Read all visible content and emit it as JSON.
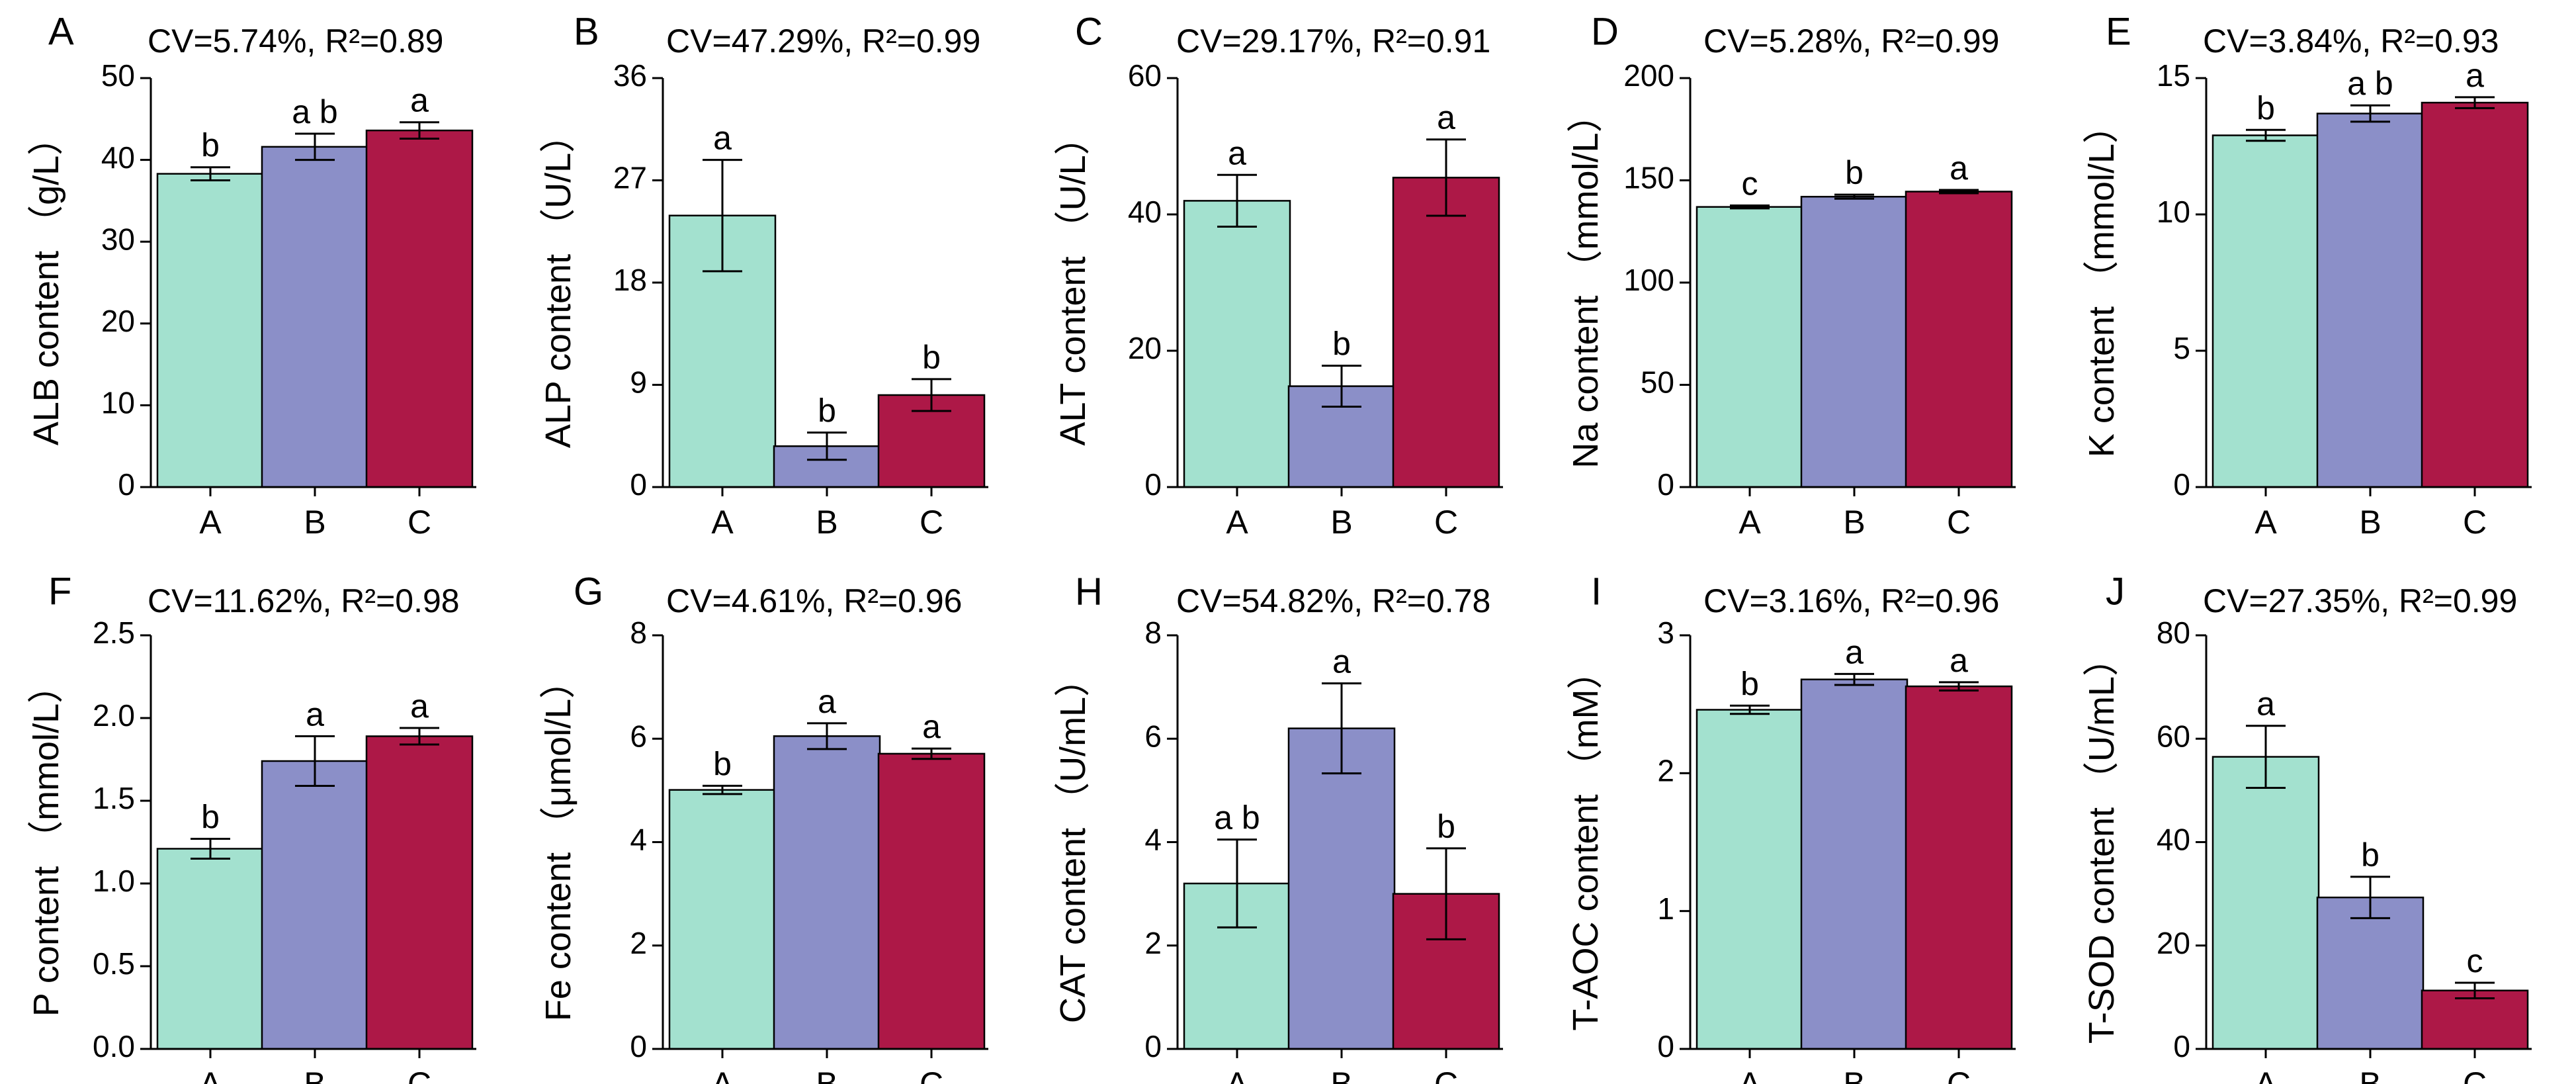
{
  "figure": {
    "categories": [
      "A",
      "B",
      "C"
    ],
    "bar_colors": [
      "#a3e1cf",
      "#8b8fc8",
      "#ad1847"
    ]
  },
  "chart_data": [
    {
      "panel": "A",
      "type": "bar",
      "stats": "CV=5.74%, R²=0.89",
      "ylabel": "ALB content （g/L）",
      "categories": [
        "A",
        "B",
        "C"
      ],
      "values": [
        38.3,
        41.6,
        43.6
      ],
      "errors": [
        0.8,
        1.6,
        1.0
      ],
      "letters": [
        "b",
        "a b",
        "a"
      ],
      "ylim": [
        0,
        50
      ],
      "yticks": [
        0,
        10,
        20,
        30,
        40,
        50
      ]
    },
    {
      "panel": "B",
      "type": "bar",
      "stats": "CV=47.29%, R²=0.99",
      "ylabel": "ALP content （U/L）",
      "categories": [
        "A",
        "B",
        "C"
      ],
      "values": [
        23.9,
        3.6,
        8.1
      ],
      "errors": [
        4.9,
        1.2,
        1.4
      ],
      "letters": [
        "a",
        "b",
        "b"
      ],
      "ylim": [
        0,
        36
      ],
      "yticks": [
        0,
        9,
        18,
        27,
        36
      ]
    },
    {
      "panel": "C",
      "type": "bar",
      "stats": "CV=29.17%, R²=0.91",
      "ylabel": "ALT content （U/L）",
      "categories": [
        "A",
        "B",
        "C"
      ],
      "values": [
        42.0,
        14.8,
        45.4
      ],
      "errors": [
        3.8,
        3.0,
        5.6
      ],
      "letters": [
        "a",
        "b",
        "a"
      ],
      "ylim": [
        0,
        60
      ],
      "yticks": [
        0,
        20,
        40,
        60
      ]
    },
    {
      "panel": "D",
      "type": "bar",
      "stats": "CV=5.28%, R²=0.99",
      "ylabel": "Na content （mmol/L）",
      "categories": [
        "A",
        "B",
        "C"
      ],
      "values": [
        137.0,
        142.0,
        144.5
      ],
      "errors": [
        0.7,
        1.0,
        0.8
      ],
      "letters": [
        "c",
        "b",
        "a"
      ],
      "ylim": [
        0,
        200
      ],
      "yticks": [
        0,
        50,
        100,
        150,
        200
      ]
    },
    {
      "panel": "E",
      "type": "bar",
      "stats": "CV=3.84%, R²=0.93",
      "ylabel": "K content （mmol/L）",
      "categories": [
        "A",
        "B",
        "C"
      ],
      "values": [
        12.9,
        13.7,
        14.1
      ],
      "errors": [
        0.2,
        0.3,
        0.2
      ],
      "letters": [
        "b",
        "a b",
        "a"
      ],
      "ylim": [
        0,
        15
      ],
      "yticks": [
        0,
        5,
        10,
        15
      ]
    },
    {
      "panel": "F",
      "type": "bar",
      "stats": "CV=11.62%, R²=0.98",
      "ylabel": "P content （mmol/L）",
      "categories": [
        "A",
        "B",
        "C"
      ],
      "values": [
        1.21,
        1.74,
        1.89
      ],
      "errors": [
        0.06,
        0.15,
        0.05
      ],
      "letters": [
        "b",
        "a",
        "a"
      ],
      "ylim": [
        0,
        2.5
      ],
      "yticks": [
        0.0,
        0.5,
        1.0,
        1.5,
        2.0,
        2.5
      ],
      "tick_decimals": 1
    },
    {
      "panel": "G",
      "type": "bar",
      "stats": "CV=4.61%, R²=0.96",
      "ylabel": "Fe content （μmol/L）",
      "categories": [
        "A",
        "B",
        "C"
      ],
      "values": [
        5.01,
        6.05,
        5.71
      ],
      "errors": [
        0.08,
        0.25,
        0.1
      ],
      "letters": [
        "b",
        "a",
        "a"
      ],
      "ylim": [
        0,
        8
      ],
      "yticks": [
        0,
        2,
        4,
        6,
        8
      ]
    },
    {
      "panel": "H",
      "type": "bar",
      "stats": "CV=54.82%, R²=0.78",
      "ylabel": "CAT content （U/mL）",
      "categories": [
        "A",
        "B",
        "C"
      ],
      "values": [
        3.2,
        6.2,
        3.0
      ],
      "errors": [
        0.85,
        0.87,
        0.88
      ],
      "letters": [
        "a b",
        "a",
        "b"
      ],
      "ylim": [
        0,
        8
      ],
      "yticks": [
        0,
        2,
        4,
        6,
        8
      ]
    },
    {
      "panel": "I",
      "type": "bar",
      "stats": "CV=3.16%, R²=0.96",
      "ylabel": "T-AOC content （mM）",
      "categories": [
        "A",
        "B",
        "C"
      ],
      "values": [
        2.46,
        2.68,
        2.63
      ],
      "errors": [
        0.03,
        0.04,
        0.03
      ],
      "letters": [
        "b",
        "a",
        "a"
      ],
      "ylim": [
        0,
        3
      ],
      "yticks": [
        0,
        1,
        2,
        3
      ]
    },
    {
      "panel": "J",
      "type": "bar",
      "stats": "CV=27.35%, R²=0.99",
      "ylabel": "T-SOD content （U/mL）",
      "categories": [
        "A",
        "B",
        "C"
      ],
      "values": [
        56.5,
        29.3,
        11.3
      ],
      "errors": [
        6.0,
        4.0,
        1.5
      ],
      "letters": [
        "a",
        "b",
        "c"
      ],
      "ylim": [
        0,
        80
      ],
      "yticks": [
        0,
        20,
        40,
        60,
        80
      ]
    }
  ]
}
